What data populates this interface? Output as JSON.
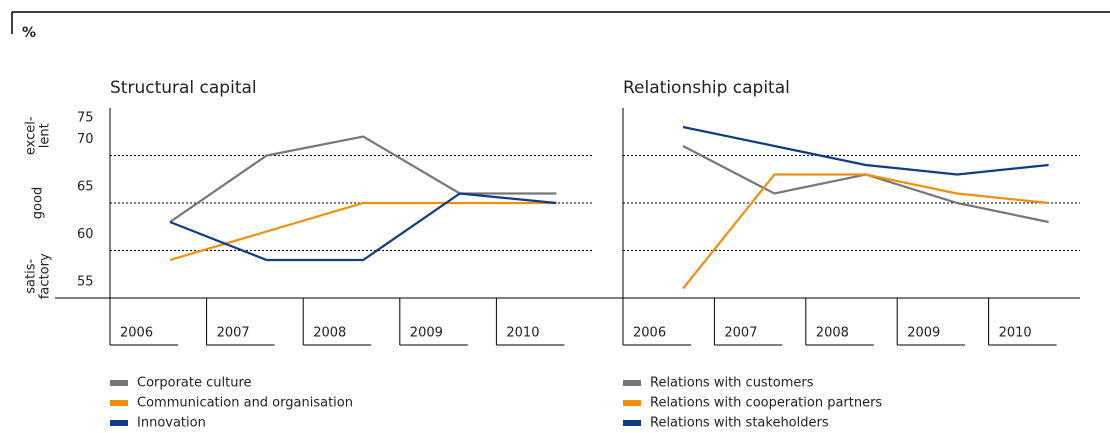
{
  "unit": "%",
  "band_labels": [
    [
      "excel-",
      "lent"
    ],
    [
      "good"
    ],
    [
      "satis-",
      "factory"
    ]
  ],
  "chart_data": [
    {
      "type": "line",
      "title": "Structural capital",
      "categories": [
        "2006",
        "2007",
        "2008",
        "2009",
        "2010"
      ],
      "ylim": [
        55,
        75
      ],
      "yticks": [
        55,
        60,
        65,
        70,
        75
      ],
      "show_tick_labels": true,
      "series": [
        {
          "name": "Corporate culture",
          "color": "#777777",
          "values": [
            63,
            70,
            72,
            66,
            66
          ]
        },
        {
          "name": "Communication and organisation",
          "color": "#f0900a",
          "values": [
            59,
            62,
            65,
            65,
            65
          ]
        },
        {
          "name": "Innovation",
          "color": "#0f3c82",
          "values": [
            63,
            59,
            59,
            66,
            65
          ]
        }
      ]
    },
    {
      "type": "line",
      "title": "Relationship capital",
      "categories": [
        "2006",
        "2007",
        "2008",
        "2009",
        "2010"
      ],
      "ylim": [
        55,
        75
      ],
      "yticks": [
        55,
        60,
        65,
        70,
        75
      ],
      "show_tick_labels": false,
      "series": [
        {
          "name": "Relations with customers",
          "color": "#777777",
          "values": [
            71,
            66,
            68,
            65,
            63
          ]
        },
        {
          "name": "Relations with cooperation partners",
          "color": "#f0900a",
          "values": [
            56,
            68,
            68,
            66,
            65
          ]
        },
        {
          "name": "Relations with stakeholders",
          "color": "#0f3c82",
          "values": [
            73,
            71,
            69,
            68,
            69
          ]
        }
      ]
    }
  ]
}
